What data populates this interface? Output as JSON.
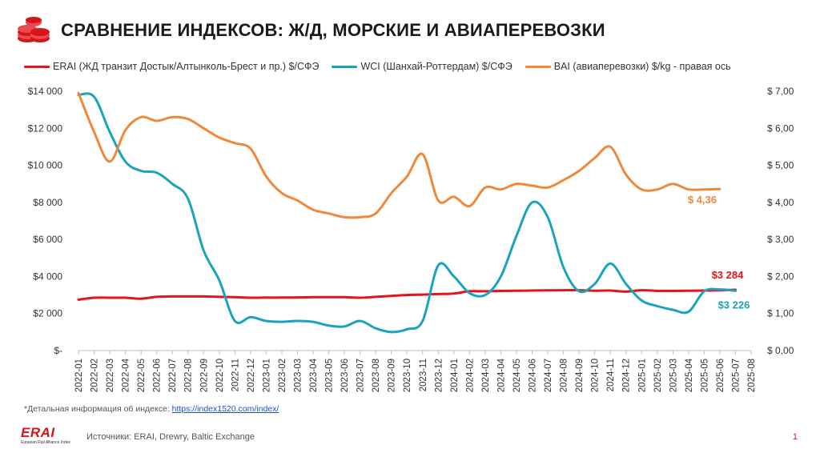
{
  "header": {
    "title": "СРАВНЕНИЕ ИНДЕКСОВ:  Ж/Д, МОРСКИЕ И АВИАПЕРЕВОЗКИ",
    "icon": "coins-icon"
  },
  "chart_data": {
    "type": "line",
    "title": "СРАВНЕНИЕ ИНДЕКСОВ:  Ж/Д, МОРСКИЕ И АВИАПЕРЕВОЗКИ",
    "legend_position": "top",
    "grid": false,
    "x": [
      "2022-01",
      "2022-02",
      "2022-03",
      "2022-04",
      "2022-05",
      "2022-06",
      "2022-07",
      "2022-08",
      "2022-09",
      "2022-10",
      "2022-11",
      "2022-12",
      "2023-01",
      "2023-02",
      "2023-03",
      "2023-04",
      "2023-05",
      "2023-06",
      "2023-07",
      "2023-08",
      "2023-09",
      "2023-10",
      "2023-11",
      "2023-12",
      "2024-01",
      "2024-02",
      "2024-03",
      "2024-04",
      "2024-05",
      "2024-06",
      "2024-07",
      "2024-08",
      "2024-09",
      "2024-10",
      "2024-11",
      "2024-12",
      "2025-01",
      "2025-02",
      "2025-03",
      "2025-04",
      "2025-05",
      "2025-06",
      "2025-07",
      "2025-08"
    ],
    "y_left": {
      "ylim": [
        0,
        14000
      ],
      "ticks": [
        "$-",
        "$2 000",
        "$4 000",
        "$6 000",
        "$8 000",
        "$10 000",
        "$12 000",
        "$14 000"
      ]
    },
    "y_right": {
      "ylim": [
        0,
        7
      ],
      "ticks": [
        "$ 0,00",
        "$ 1,00",
        "$ 2,00",
        "$ 3,00",
        "$ 4,00",
        "$ 5,00",
        "$ 6,00",
        "$ 7,00"
      ]
    },
    "series": [
      {
        "name": "ERAI (ЖД транзит Достык/Алтынколь-Брест и пр.)  $/СФЭ",
        "axis": "left",
        "color": "#e3141c",
        "values": [
          2750,
          2850,
          2850,
          2850,
          2800,
          2900,
          2920,
          2920,
          2920,
          2900,
          2880,
          2850,
          2860,
          2860,
          2870,
          2880,
          2880,
          2880,
          2850,
          2900,
          2950,
          3000,
          3020,
          3050,
          3080,
          3200,
          3200,
          3220,
          3230,
          3240,
          3250,
          3260,
          3260,
          3230,
          3240,
          3180,
          3260,
          3220,
          3220,
          3230,
          3240,
          3250,
          3284,
          null
        ],
        "end_label": "$3 284"
      },
      {
        "name": "WCI (Шанхай-Роттердам) $/СФЭ",
        "axis": "left",
        "color": "#1aa3bd",
        "values": [
          13800,
          13700,
          11800,
          10200,
          9700,
          9600,
          9000,
          8200,
          5400,
          3800,
          1600,
          1800,
          1600,
          1550,
          1600,
          1550,
          1350,
          1300,
          1600,
          1200,
          1000,
          1150,
          1600,
          4600,
          4000,
          3100,
          3000,
          4000,
          6200,
          8000,
          7200,
          4500,
          3200,
          3600,
          4700,
          3600,
          2700,
          2400,
          2200,
          2100,
          3200,
          3300,
          3226,
          null
        ],
        "end_label": "$3 226"
      },
      {
        "name": "BAI (авиаперевозки) $/kg - правая ось",
        "axis": "right",
        "color": "#f0883a",
        "values": [
          6.95,
          5.9,
          5.1,
          5.95,
          6.3,
          6.2,
          6.3,
          6.25,
          6.0,
          5.75,
          5.6,
          5.45,
          4.7,
          4.25,
          4.05,
          3.8,
          3.7,
          3.6,
          3.6,
          3.7,
          4.25,
          4.7,
          5.3,
          4.05,
          4.15,
          3.9,
          4.4,
          4.35,
          4.5,
          4.45,
          4.4,
          4.6,
          4.85,
          5.2,
          5.5,
          4.75,
          4.35,
          4.35,
          4.5,
          4.35,
          4.35,
          4.36,
          null,
          null
        ],
        "end_label": "$ 4,36"
      }
    ]
  },
  "footnote": {
    "text": "*Детальная информация об индексе: ",
    "link": "https://index1520.com/index/"
  },
  "footer": {
    "logo": "ERAI",
    "logo_sub": "Eurasian Rail Alliance Index",
    "sources": "Источники: ERAI, Drewry, Baltic Exchange",
    "page": "1"
  }
}
